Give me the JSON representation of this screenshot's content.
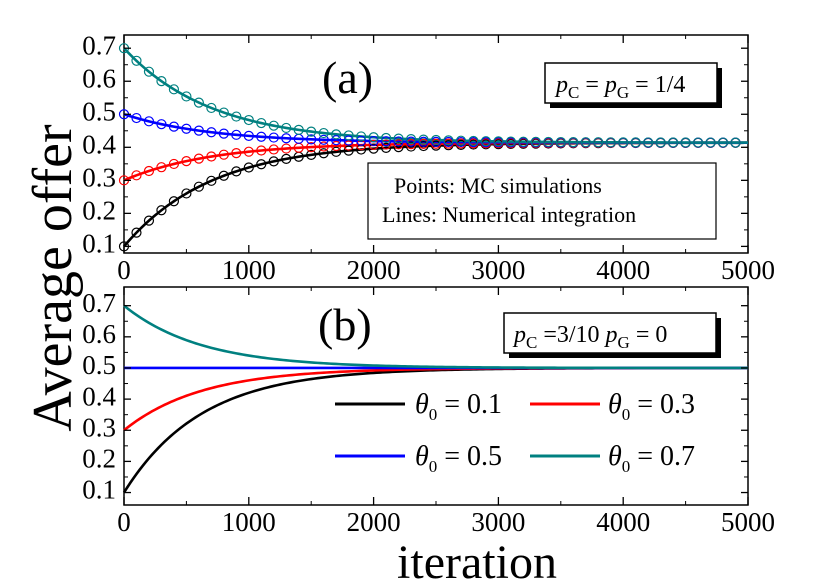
{
  "chart_data": [
    {
      "type": "line",
      "panel_label": "(a)",
      "param_box": {
        "pc_symbol": "p",
        "pc_sub": "C",
        "pg_symbol": "p",
        "pg_sub": "G",
        "text_mid": " = ",
        "text_end": " = 1/4"
      },
      "method_box": {
        "line1": "Points: MC simulations",
        "line2": "Lines: Numerical integration"
      },
      "xlim": [
        0,
        5000
      ],
      "ylim": [
        0.08,
        0.74
      ],
      "xticks": [
        0,
        1000,
        2000,
        3000,
        4000,
        5000
      ],
      "yticks": [
        0.1,
        0.2,
        0.3,
        0.4,
        0.5,
        0.6,
        0.7
      ],
      "ytick_labels": [
        "0.1",
        "0.2",
        "0.3",
        "0.4",
        "0.5",
        "0.6",
        "0.7"
      ],
      "xtick_labels": [
        "0",
        "1000",
        "2000",
        "3000",
        "4000",
        "5000"
      ],
      "markers": "open circles",
      "series": [
        {
          "color": "#000000",
          "y0": 0.1,
          "yinf": 0.414,
          "tau": 700
        },
        {
          "color": "#ff0000",
          "y0": 0.3,
          "yinf": 0.414,
          "tau": 700
        },
        {
          "color": "#0000ff",
          "y0": 0.5,
          "yinf": 0.414,
          "tau": 700
        },
        {
          "color": "#008080",
          "y0": 0.7,
          "yinf": 0.414,
          "tau": 700
        }
      ]
    },
    {
      "type": "line",
      "panel_label": "(b)",
      "param_box": {
        "pc_symbol": "p",
        "pc_sub": "C",
        "pg_symbol": "p",
        "pg_sub": "G",
        "text_mid": " =3/10  ",
        "text_end": " = 0"
      },
      "xlim": [
        0,
        5000
      ],
      "ylim": [
        0.06,
        0.76
      ],
      "xticks": [
        0,
        1000,
        2000,
        3000,
        4000,
        5000
      ],
      "yticks": [
        0.1,
        0.2,
        0.3,
        0.4,
        0.5,
        0.6,
        0.7
      ],
      "ytick_labels": [
        "0.1",
        "0.2",
        "0.3",
        "0.4",
        "0.5",
        "0.6",
        "0.7"
      ],
      "xtick_labels": [
        "0",
        "1000",
        "2000",
        "3000",
        "4000",
        "5000"
      ],
      "series": [
        {
          "name_symbol": "θ",
          "name_sub": "0",
          "name_rest": " = 0.1",
          "color": "#000000",
          "y0": 0.1,
          "yinf": 0.5,
          "tau": 620
        },
        {
          "name_symbol": "θ",
          "name_sub": "0",
          "name_rest": " = 0.3",
          "color": "#ff0000",
          "y0": 0.3,
          "yinf": 0.5,
          "tau": 620
        },
        {
          "name_symbol": "θ",
          "name_sub": "0",
          "name_rest": " = 0.5",
          "color": "#0000ff",
          "y0": 0.5,
          "yinf": 0.5,
          "tau": 620
        },
        {
          "name_symbol": "θ",
          "name_sub": "0",
          "name_rest": " = 0.7",
          "color": "#008080",
          "y0": 0.7,
          "yinf": 0.5,
          "tau": 620
        }
      ]
    }
  ],
  "ylabel": "Average offer",
  "xlabel": "iteration"
}
